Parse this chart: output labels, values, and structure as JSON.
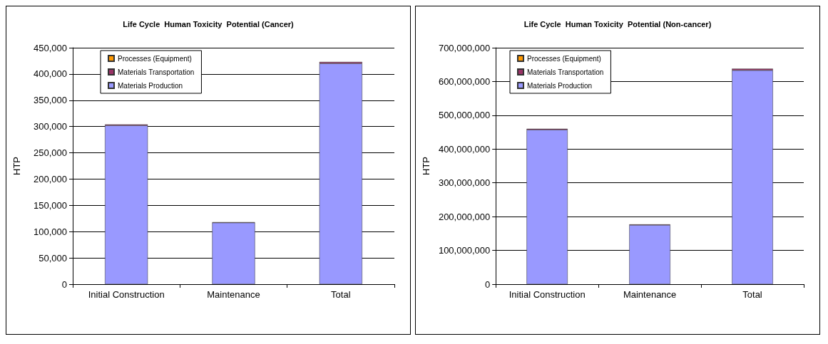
{
  "chart_data": [
    {
      "type": "bar",
      "title": "Life Cycle  Human Toxicity  Potential (Cancer)",
      "ylabel": "HTP",
      "categories": [
        "Initial Construction",
        "Maintenance",
        "Total"
      ],
      "stacked": true,
      "series": [
        {
          "name": "Materials Production",
          "color": "#9999ff",
          "values": [
            302000,
            117000,
            420000
          ]
        },
        {
          "name": "Materials Transportation",
          "color": "#993366",
          "values": [
            2000,
            1000,
            3000
          ]
        },
        {
          "name": "Processes (Equipment)",
          "color": "#ff9900",
          "values": [
            0,
            0,
            0
          ]
        }
      ],
      "ylim": [
        0,
        450000
      ],
      "yticks": [
        {
          "value": 0,
          "label": "0"
        },
        {
          "value": 50000,
          "label": "50,000"
        },
        {
          "value": 100000,
          "label": "100,000"
        },
        {
          "value": 150000,
          "label": "150,000"
        },
        {
          "value": 200000,
          "label": "200,000"
        },
        {
          "value": 250000,
          "label": "250,000"
        },
        {
          "value": 300000,
          "label": "300,000"
        },
        {
          "value": 350000,
          "label": "350,000"
        },
        {
          "value": 400000,
          "label": "400,000"
        },
        {
          "value": 450000,
          "label": "450,000"
        }
      ],
      "grid": "y",
      "legend": "top left"
    },
    {
      "type": "bar",
      "title": "Life Cycle  Human Toxicity  Potential (Non-cancer)",
      "ylabel": "HTP",
      "categories": [
        "Initial Construction",
        "Maintenance",
        "Total"
      ],
      "stacked": true,
      "series": [
        {
          "name": "Materials Production",
          "color": "#9999ff",
          "values": [
            457000000,
            175000000,
            633000000
          ]
        },
        {
          "name": "Materials Transportation",
          "color": "#993366",
          "values": [
            3000000,
            2000000,
            5000000
          ]
        },
        {
          "name": "Processes (Equipment)",
          "color": "#ff9900",
          "values": [
            0,
            0,
            0
          ]
        }
      ],
      "ylim": [
        0,
        700000000
      ],
      "yticks": [
        {
          "value": 0,
          "label": "0"
        },
        {
          "value": 100000000,
          "label": "100,000,000"
        },
        {
          "value": 200000000,
          "label": "200,000,000"
        },
        {
          "value": 300000000,
          "label": "300,000,000"
        },
        {
          "value": 400000000,
          "label": "400,000,000"
        },
        {
          "value": 500000000,
          "label": "500,000,000"
        },
        {
          "value": 600000000,
          "label": "600,000,000"
        },
        {
          "value": 700000000,
          "label": "700,000,000"
        }
      ],
      "grid": "y",
      "legend": "top left"
    }
  ]
}
